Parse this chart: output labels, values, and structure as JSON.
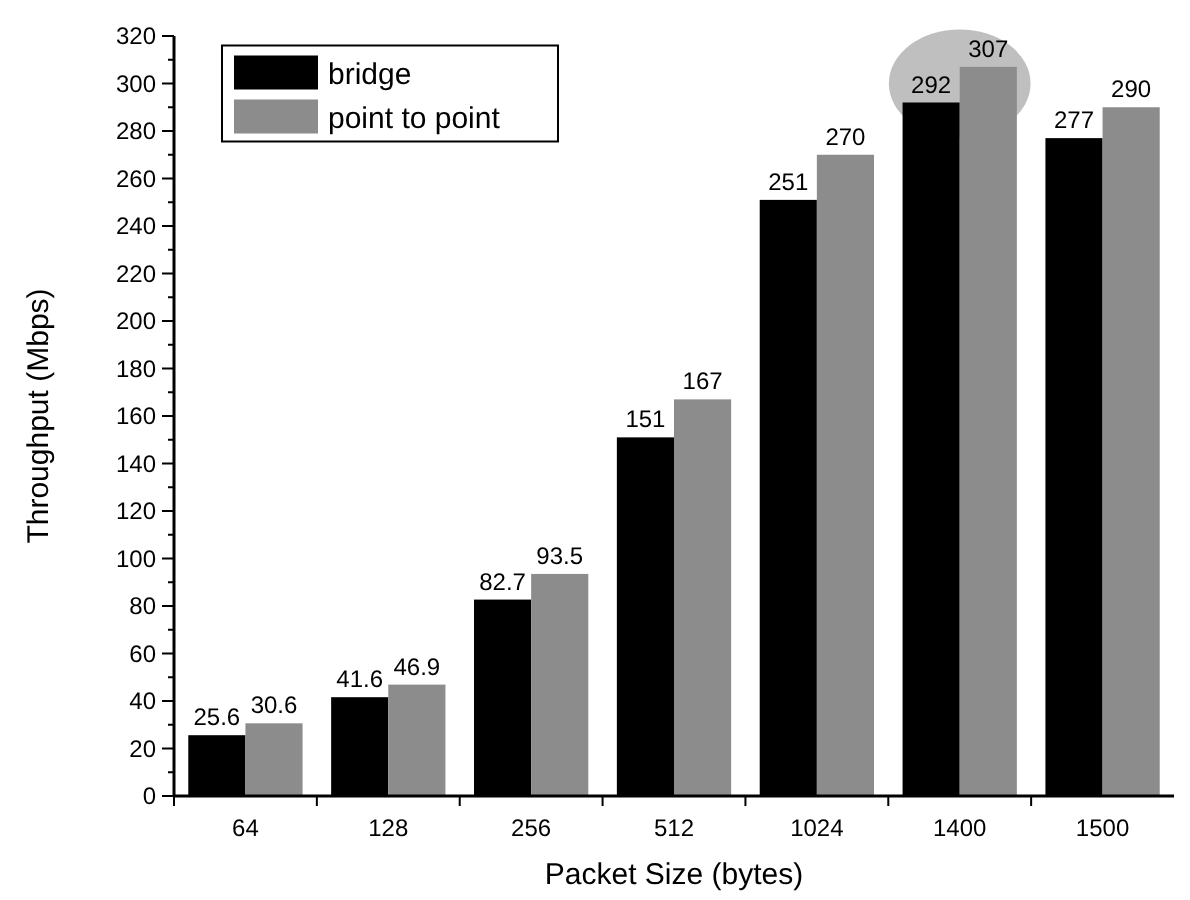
{
  "chart_data": {
    "type": "bar",
    "xlabel": "Packet Size (bytes)",
    "ylabel": "Throughput (Mbps)",
    "categories": [
      "64",
      "128",
      "256",
      "512",
      "1024",
      "1400",
      "1500"
    ],
    "series": [
      {
        "name": "bridge",
        "color": "#000000",
        "values": [
          25.6,
          41.6,
          82.7,
          151,
          251,
          292,
          277
        ]
      },
      {
        "name": "point to point",
        "color": "#8c8c8c",
        "values": [
          30.6,
          46.9,
          93.5,
          167,
          270,
          307,
          290
        ]
      }
    ],
    "ylim": [
      0,
      320
    ],
    "yticks": [
      0,
      20,
      40,
      60,
      80,
      100,
      120,
      140,
      160,
      180,
      200,
      220,
      240,
      260,
      280,
      300,
      320
    ],
    "data_labels": true,
    "legend": "top left",
    "grid": false
  }
}
